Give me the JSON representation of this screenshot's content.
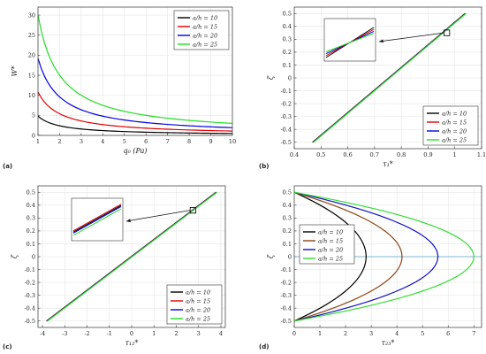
{
  "colors": {
    "s10": "#000000",
    "s15": "#e00000",
    "s20": "#0000e0",
    "s25": "#22dd22",
    "d15": "#8b4513",
    "d20": "#1010c0",
    "d25": "#33dd33",
    "hline": "#5aa0c8"
  },
  "chart_data": [
    {
      "type": "line",
      "label": "(a)",
      "xlabel": "q₀ (Pa)",
      "ylabel": "W*",
      "xlim": [
        1,
        10
      ],
      "ylim": [
        0,
        32
      ],
      "xticks": [
        1,
        2,
        3,
        4,
        5,
        6,
        7,
        8,
        9,
        10
      ],
      "yticks": [
        0,
        5,
        10,
        15,
        20,
        25,
        30
      ],
      "grid": true,
      "legend": "top-right",
      "series": [
        {
          "name": "a/h = 10",
          "color": "#000000",
          "x": [
            1,
            1.5,
            2,
            3,
            4,
            5,
            6,
            7,
            8,
            9,
            10
          ],
          "y": [
            4.8,
            3.2,
            2.4,
            1.6,
            1.2,
            0.96,
            0.8,
            0.69,
            0.6,
            0.53,
            0.48
          ]
        },
        {
          "name": "a/h = 15",
          "color": "#e00000",
          "x": [
            1,
            1.5,
            2,
            3,
            4,
            5,
            6,
            7,
            8,
            9,
            10
          ],
          "y": [
            10.8,
            7.2,
            5.4,
            3.6,
            2.7,
            2.16,
            1.8,
            1.54,
            1.35,
            1.2,
            1.08
          ]
        },
        {
          "name": "a/h = 20",
          "color": "#0000e0",
          "x": [
            1,
            1.5,
            2,
            3,
            4,
            5,
            6,
            7,
            8,
            9,
            10
          ],
          "y": [
            19.2,
            12.8,
            9.6,
            6.4,
            4.8,
            3.84,
            3.2,
            2.74,
            2.4,
            2.13,
            1.92
          ]
        },
        {
          "name": "a/h = 25",
          "color": "#22dd22",
          "x": [
            1,
            1.5,
            2,
            3,
            4,
            5,
            6,
            7,
            8,
            9,
            10
          ],
          "y": [
            30,
            20,
            15,
            10,
            7.5,
            6,
            5,
            4.29,
            3.75,
            3.33,
            3.0
          ]
        }
      ]
    },
    {
      "type": "line",
      "label": "(b)",
      "xlabel": "τ₁*",
      "ylabel": "ζ",
      "xlim": [
        0.4,
        1.1
      ],
      "ylim": [
        -0.55,
        0.55
      ],
      "xticks": [
        0.4,
        0.5,
        0.6,
        0.7,
        0.8,
        0.9,
        1,
        1.1
      ],
      "yticks": [
        -0.5,
        -0.4,
        -0.3,
        -0.2,
        -0.1,
        0,
        0.1,
        0.2,
        0.3,
        0.4,
        0.5
      ],
      "grid": true,
      "legend": "bottom-right",
      "inset": {
        "position": "top-left",
        "pointer_to": [
          0.97,
          0.35
        ]
      },
      "series": [
        {
          "name": "a/h = 10",
          "color": "#000000",
          "x": [
            0.47,
            1.04
          ],
          "y": [
            -0.5,
            0.5
          ]
        },
        {
          "name": "a/h = 15",
          "color": "#e00000",
          "x": [
            0.47,
            1.04
          ],
          "y": [
            -0.5,
            0.5
          ]
        },
        {
          "name": "a/h = 20",
          "color": "#0000e0",
          "x": [
            0.47,
            1.04
          ],
          "y": [
            -0.5,
            0.5
          ]
        },
        {
          "name": "a/h = 25",
          "color": "#22dd22",
          "x": [
            0.47,
            1.04
          ],
          "y": [
            -0.5,
            0.5
          ]
        }
      ]
    },
    {
      "type": "line",
      "label": "(c)",
      "xlabel": "τ₁₂*",
      "ylabel": "ζ",
      "xlim": [
        -4.2,
        4.2
      ],
      "ylim": [
        -0.55,
        0.55
      ],
      "xticks": [
        -4,
        -3,
        -2,
        -1,
        0,
        1,
        2,
        3,
        4
      ],
      "yticks": [
        -0.5,
        -0.4,
        -0.3,
        -0.2,
        -0.1,
        0,
        0.1,
        0.2,
        0.3,
        0.4,
        0.5
      ],
      "grid": true,
      "legend": "bottom-right",
      "inset": {
        "position": "top-left",
        "pointer_to": [
          2.75,
          0.36
        ]
      },
      "series": [
        {
          "name": "a/h = 10",
          "color": "#000000",
          "x": [
            -3.8,
            3.8
          ],
          "y": [
            -0.5,
            0.5
          ]
        },
        {
          "name": "a/h = 15",
          "color": "#e00000",
          "x": [
            -3.8,
            3.8
          ],
          "y": [
            -0.5,
            0.5
          ]
        },
        {
          "name": "a/h = 20",
          "color": "#0000e0",
          "x": [
            -3.8,
            3.8
          ],
          "y": [
            -0.5,
            0.5
          ]
        },
        {
          "name": "a/h = 25",
          "color": "#22dd22",
          "x": [
            -3.8,
            3.8
          ],
          "y": [
            -0.5,
            0.5
          ]
        }
      ]
    },
    {
      "type": "line",
      "label": "(d)",
      "xlabel": "τ₂₃*",
      "ylabel": "ζ",
      "xlim": [
        0,
        7.3
      ],
      "ylim": [
        -0.55,
        0.55
      ],
      "xticks": [
        0,
        1,
        2,
        3,
        4,
        5,
        6,
        7
      ],
      "yticks": [
        -0.5,
        -0.4,
        -0.3,
        -0.2,
        -0.1,
        0,
        0.1,
        0.2,
        0.3,
        0.4,
        0.5
      ],
      "grid": true,
      "legend": "top-left",
      "hline_y": 0,
      "series": [
        {
          "name": "a/h = 10",
          "color": "#000000",
          "peak": 2.8
        },
        {
          "name": "a/h = 15",
          "color": "#8b4513",
          "peak": 4.2
        },
        {
          "name": "a/h = 20",
          "color": "#1010c0",
          "peak": 5.6
        },
        {
          "name": "a/h = 25",
          "color": "#33dd33",
          "peak": 7.0
        }
      ]
    }
  ]
}
